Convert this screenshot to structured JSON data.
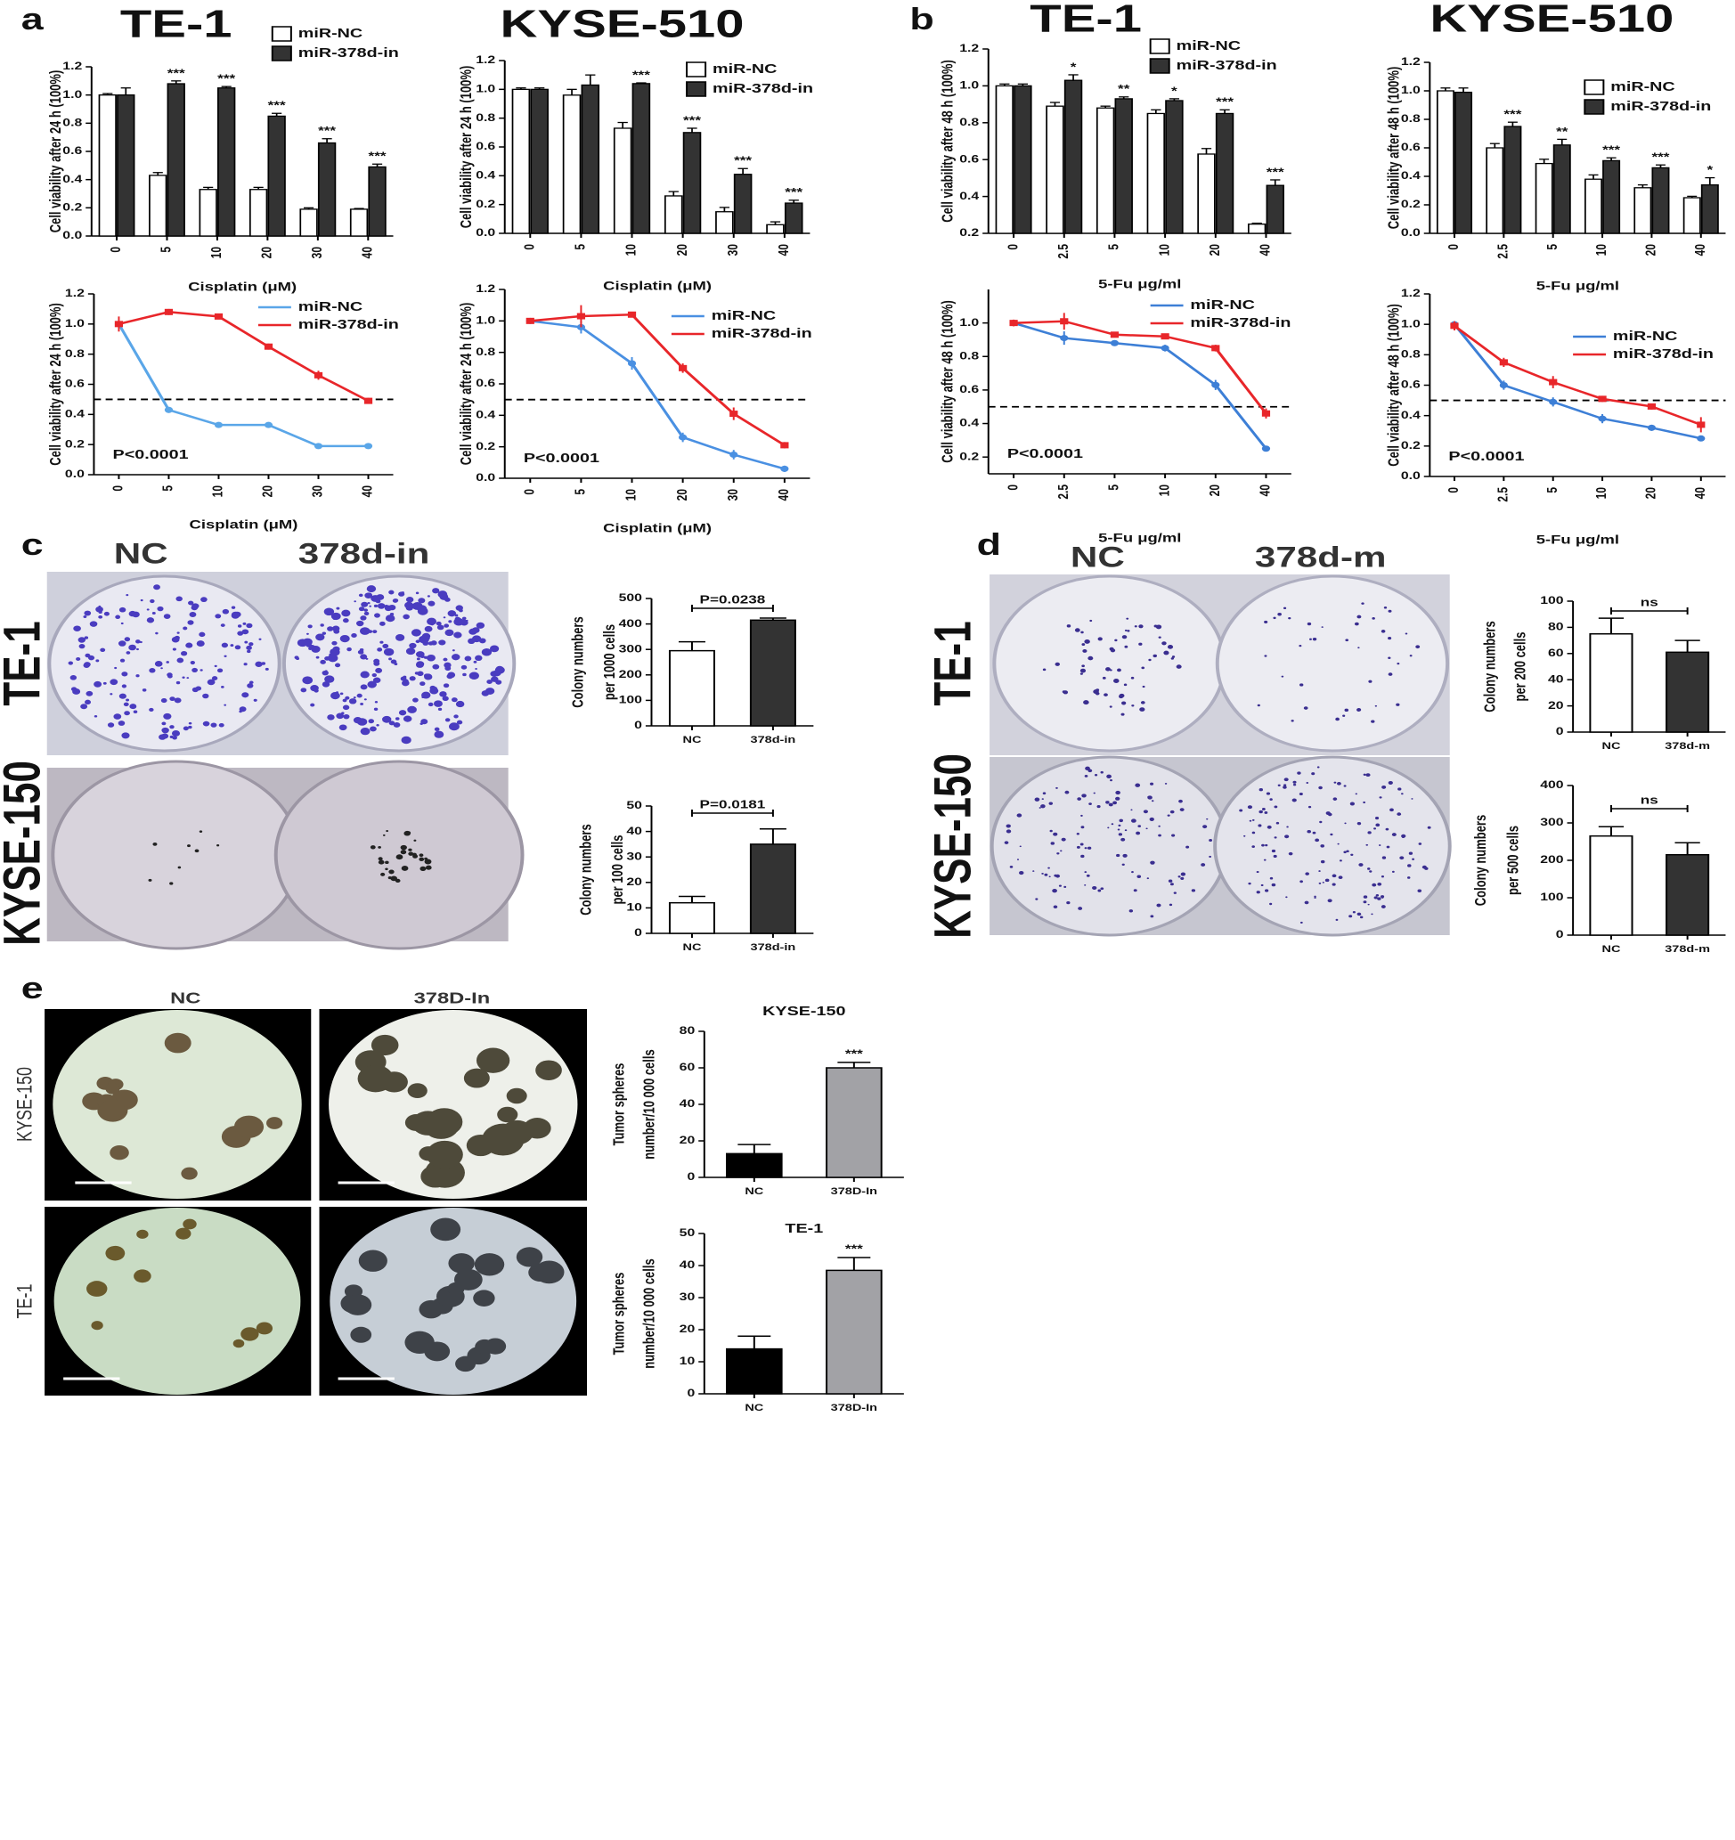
{
  "figure": {
    "panel_letters": [
      "a",
      "b",
      "c",
      "d",
      "e"
    ],
    "c": {
      "columns": [
        "NC",
        "378d-in"
      ],
      "rows": [
        "TE-1",
        "KYSE-150"
      ]
    },
    "d": {
      "columns": [
        "NC",
        "378d-m"
      ],
      "rows": [
        "TE-1",
        "KYSE-150"
      ]
    },
    "e": {
      "columns": [
        "NC",
        "378D-In"
      ],
      "rows": [
        "KYSE-150",
        "TE-1"
      ]
    }
  },
  "chart_data": [
    {
      "type": "bar",
      "title": "TE-1",
      "xlabel": "Cisplatin (μM)",
      "ylabel": "Cell viability after 24 h (100%)",
      "categories": [
        "0",
        "5",
        "10",
        "20",
        "30",
        "40"
      ],
      "legend": "upper right",
      "series": [
        {
          "name": "miR-NC",
          "color": "#ffffff",
          "values": [
            1.0,
            0.43,
            0.33,
            0.33,
            0.19,
            0.19
          ],
          "errors": [
            0.01,
            0.02,
            0.015,
            0.015,
            0.01,
            0.005
          ]
        },
        {
          "name": "miR-378d-in",
          "color": "#333333",
          "values": [
            1.0,
            1.08,
            1.05,
            0.85,
            0.66,
            0.49
          ],
          "errors": [
            0.05,
            0.02,
            0.01,
            0.02,
            0.03,
            0.02
          ],
          "annotations": [
            null,
            "***",
            "***",
            "***",
            "***",
            "***"
          ]
        }
      ],
      "ylim": [
        0,
        1.2
      ],
      "yticks": [
        {
          "value": 0,
          "label": "0.0"
        },
        0.2,
        0.4,
        0.6,
        0.8,
        {
          "value": 1,
          "label": "1.0"
        },
        1.2
      ]
    },
    {
      "type": "line",
      "xlabel": "Cisplatin (μM)",
      "ylabel": "Cell viability after 24 h (100%)",
      "categories": [
        "0",
        "5",
        "10",
        "20",
        "30",
        "40"
      ],
      "legend": "upper right",
      "series": [
        {
          "name": "miR-NC",
          "color": "#5aa6e8",
          "values": [
            1.0,
            0.43,
            0.33,
            0.33,
            0.19,
            0.19
          ],
          "errors": [
            0.01,
            0.02,
            0.015,
            0.015,
            0.01,
            0.005
          ]
        },
        {
          "name": "miR-378d-in",
          "color": "#e8262a",
          "values": [
            1.0,
            1.08,
            1.05,
            0.85,
            0.66,
            0.49
          ],
          "errors": [
            0.05,
            0.02,
            0.01,
            0.02,
            0.03,
            0.02
          ]
        }
      ],
      "reference_line": 0.5,
      "annotation": "P<0.0001",
      "ylim": [
        0,
        1.2
      ],
      "yticks": [
        {
          "value": 0,
          "label": "0.0"
        },
        0.2,
        0.4,
        0.6,
        0.8,
        {
          "value": 1,
          "label": "1.0"
        },
        1.2
      ]
    },
    {
      "type": "bar",
      "title": "KYSE-510",
      "xlabel": "Cisplatin (μM)",
      "ylabel": "Cell viability after 24 h (100%)",
      "categories": [
        "0",
        "5",
        "10",
        "20",
        "30",
        "40"
      ],
      "legend": "upper right",
      "series": [
        {
          "name": "miR-NC",
          "color": "#ffffff",
          "values": [
            1.0,
            0.96,
            0.73,
            0.26,
            0.15,
            0.06
          ],
          "errors": [
            0.01,
            0.04,
            0.04,
            0.03,
            0.03,
            0.02
          ]
        },
        {
          "name": "miR-378d-in",
          "color": "#333333",
          "values": [
            1.0,
            1.03,
            1.04,
            0.7,
            0.41,
            0.21
          ],
          "errors": [
            0.01,
            0.07,
            0.005,
            0.03,
            0.04,
            0.02
          ],
          "annotations": [
            null,
            null,
            "***",
            "***",
            "***",
            "***"
          ]
        }
      ],
      "ylim": [
        0,
        1.2
      ],
      "yticks": [
        {
          "value": 0,
          "label": "0.0"
        },
        0.2,
        0.4,
        0.6,
        0.8,
        {
          "value": 1,
          "label": "1.0"
        },
        1.2
      ]
    },
    {
      "type": "line",
      "xlabel": "Cisplatin (μM)",
      "ylabel": "Cell viability after 24 h (100%)",
      "categories": [
        "0",
        "5",
        "10",
        "20",
        "30",
        "40"
      ],
      "legend": "upper right",
      "series": [
        {
          "name": "miR-NC",
          "color": "#4a90e2",
          "values": [
            1.0,
            0.96,
            0.73,
            0.26,
            0.15,
            0.06
          ],
          "errors": [
            0.01,
            0.04,
            0.04,
            0.03,
            0.03,
            0.02
          ]
        },
        {
          "name": "miR-378d-in",
          "color": "#e8262a",
          "values": [
            1.0,
            1.03,
            1.04,
            0.7,
            0.41,
            0.21
          ],
          "errors": [
            0.01,
            0.07,
            0.005,
            0.03,
            0.04,
            0.02
          ]
        }
      ],
      "reference_line": 0.5,
      "annotation": "P<0.0001",
      "ylim": [
        0,
        1.2
      ],
      "yticks": [
        {
          "value": 0,
          "label": "0.0"
        },
        0.2,
        0.4,
        0.6,
        0.8,
        {
          "value": 1,
          "label": "1.0"
        },
        1.2
      ]
    },
    {
      "type": "bar",
      "title": "TE-1",
      "xlabel": "5-Fu μg/ml",
      "ylabel": "Cell viability after 48 h (100%)",
      "categories": [
        "0",
        "2.5",
        "5",
        "10",
        "20",
        "40"
      ],
      "legend": "upper right",
      "series": [
        {
          "name": "miR-NC",
          "color": "#ffffff",
          "values": [
            1.0,
            0.89,
            0.88,
            0.85,
            0.63,
            0.25
          ],
          "errors": [
            0.01,
            0.02,
            0.01,
            0.02,
            0.03,
            0.005
          ]
        },
        {
          "name": "miR-378d-in",
          "color": "#333333",
          "values": [
            1.0,
            1.03,
            0.93,
            0.92,
            0.85,
            0.46
          ],
          "errors": [
            0.01,
            0.03,
            0.01,
            0.01,
            0.02,
            0.03
          ],
          "annotations": [
            null,
            "*",
            "**",
            "*",
            "***",
            "***"
          ]
        }
      ],
      "ylim": [
        0.2,
        1.2
      ],
      "yticks": [
        0.2,
        0.4,
        0.6,
        0.8,
        {
          "value": 1,
          "label": "1.0"
        },
        1.2
      ]
    },
    {
      "type": "line",
      "xlabel": "5-Fu μg/ml",
      "ylabel": "Cell viability after 48 h (100%)",
      "categories": [
        "0",
        "2.5",
        "5",
        "10",
        "20",
        "40"
      ],
      "legend": "upper right",
      "series": [
        {
          "name": "miR-NC",
          "color": "#3d7fd6",
          "values": [
            1.0,
            0.91,
            0.88,
            0.85,
            0.63,
            0.25
          ],
          "errors": [
            0.01,
            0.04,
            0.01,
            0.02,
            0.03,
            0.005
          ]
        },
        {
          "name": "miR-378d-in",
          "color": "#e8262a",
          "values": [
            1.0,
            1.01,
            0.93,
            0.92,
            0.85,
            0.46
          ],
          "errors": [
            0.02,
            0.05,
            0.01,
            0.01,
            0.02,
            0.03
          ]
        }
      ],
      "reference_line": 0.5,
      "annotation": "P<0.0001",
      "ylim": [
        0.1,
        1.2
      ],
      "yticks": [
        0.2,
        0.4,
        0.6,
        0.8,
        {
          "value": 1,
          "label": "1.0"
        }
      ]
    },
    {
      "type": "bar",
      "title": "KYSE-510",
      "xlabel": "5-Fu μg/ml",
      "ylabel": "Cell viability after 48 h (100%)",
      "categories": [
        "0",
        "2.5",
        "5",
        "10",
        "20",
        "40"
      ],
      "legend": "right",
      "series": [
        {
          "name": "miR-NC",
          "color": "#ffffff",
          "values": [
            1.0,
            0.6,
            0.49,
            0.38,
            0.32,
            0.25
          ],
          "errors": [
            0.02,
            0.03,
            0.03,
            0.03,
            0.02,
            0.01
          ]
        },
        {
          "name": "miR-378d-in",
          "color": "#333333",
          "values": [
            0.99,
            0.75,
            0.62,
            0.51,
            0.46,
            0.34
          ],
          "errors": [
            0.03,
            0.03,
            0.04,
            0.02,
            0.02,
            0.05
          ],
          "annotations": [
            null,
            "***",
            "**",
            "***",
            "***",
            "*"
          ]
        }
      ],
      "ylim": [
        0,
        1.2
      ],
      "yticks": [
        {
          "value": 0,
          "label": "0.0"
        },
        0.2,
        0.4,
        0.6,
        0.8,
        {
          "value": 1,
          "label": "1.0"
        },
        1.2
      ]
    },
    {
      "type": "line",
      "xlabel": "5-Fu μg/ml",
      "ylabel": "Cell viability after 48 h (100%)",
      "categories": [
        "0",
        "2.5",
        "5",
        "10",
        "20",
        "40"
      ],
      "legend": "right",
      "series": [
        {
          "name": "miR-NC",
          "color": "#3d7fd6",
          "values": [
            1.0,
            0.6,
            0.49,
            0.38,
            0.32,
            0.25
          ],
          "errors": [
            0.02,
            0.03,
            0.03,
            0.03,
            0.02,
            0.01
          ]
        },
        {
          "name": "miR-378d-in",
          "color": "#e8262a",
          "values": [
            0.99,
            0.75,
            0.62,
            0.51,
            0.46,
            0.34
          ],
          "errors": [
            0.03,
            0.03,
            0.04,
            0.02,
            0.02,
            0.05
          ]
        }
      ],
      "reference_line": 0.5,
      "annotation": "P<0.0001",
      "ylim": [
        0,
        1.2
      ],
      "yticks": [
        {
          "value": 0,
          "label": "0.0"
        },
        0.2,
        0.4,
        0.6,
        0.8,
        {
          "value": 1,
          "label": "1.0"
        },
        1.2
      ]
    },
    {
      "type": "bar",
      "ylabel": [
        "Colony numbers",
        "per 1000 cells"
      ],
      "categories": [
        "NC",
        "378d-in"
      ],
      "values": [
        295,
        415
      ],
      "errors": [
        35,
        8
      ],
      "colors": [
        "#ffffff",
        "#333333"
      ],
      "annotation": "P=0.0238",
      "ylim": [
        0,
        500
      ],
      "yticks": [
        0,
        100,
        200,
        300,
        400,
        500
      ]
    },
    {
      "type": "bar",
      "ylabel": [
        "Colony numbers",
        "per 100 cells"
      ],
      "categories": [
        "NC",
        "378d-in"
      ],
      "values": [
        12,
        35
      ],
      "errors": [
        2.5,
        6
      ],
      "colors": [
        "#ffffff",
        "#333333"
      ],
      "annotation": "P=0.0181",
      "ylim": [
        0,
        50
      ],
      "yticks": [
        0,
        10,
        20,
        30,
        40,
        50
      ]
    },
    {
      "type": "bar",
      "ylabel": [
        "Colony numbers",
        "per 200 cells"
      ],
      "categories": [
        "NC",
        "378d-m"
      ],
      "values": [
        75,
        61
      ],
      "errors": [
        12,
        9
      ],
      "colors": [
        "#ffffff",
        "#333333"
      ],
      "annotation": "ns",
      "ylim": [
        0,
        100
      ],
      "yticks": [
        0,
        20,
        40,
        60,
        80,
        100
      ]
    },
    {
      "type": "bar",
      "ylabel": [
        "Colony numbers",
        "per 500 cells"
      ],
      "categories": [
        "NC",
        "378d-m"
      ],
      "values": [
        265,
        215
      ],
      "errors": [
        25,
        32
      ],
      "colors": [
        "#ffffff",
        "#333333"
      ],
      "annotation": "ns",
      "ylim": [
        0,
        400
      ],
      "yticks": [
        0,
        100,
        200,
        300,
        400
      ]
    },
    {
      "type": "bar",
      "title": "KYSE-150",
      "ylabel": [
        "Tumor spheres",
        "number/10 000 cells"
      ],
      "categories": [
        "NC",
        "378D-In"
      ],
      "values": [
        13,
        60
      ],
      "errors": [
        5,
        3
      ],
      "colors": [
        "#000000",
        "#a2a2a6"
      ],
      "annotation": "***",
      "ylim": [
        0,
        80
      ],
      "yticks": [
        0,
        20,
        40,
        60,
        80
      ]
    },
    {
      "type": "bar",
      "title": "TE-1",
      "ylabel": [
        "Tumor spheres",
        "number/10 000 cells"
      ],
      "categories": [
        "NC",
        "378D-In"
      ],
      "values": [
        14,
        38.5
      ],
      "errors": [
        4,
        4
      ],
      "colors": [
        "#000000",
        "#a2a2a6"
      ],
      "annotation": "***",
      "ylim": [
        0,
        50
      ],
      "yticks": [
        0,
        10,
        20,
        30,
        40,
        50
      ]
    }
  ]
}
